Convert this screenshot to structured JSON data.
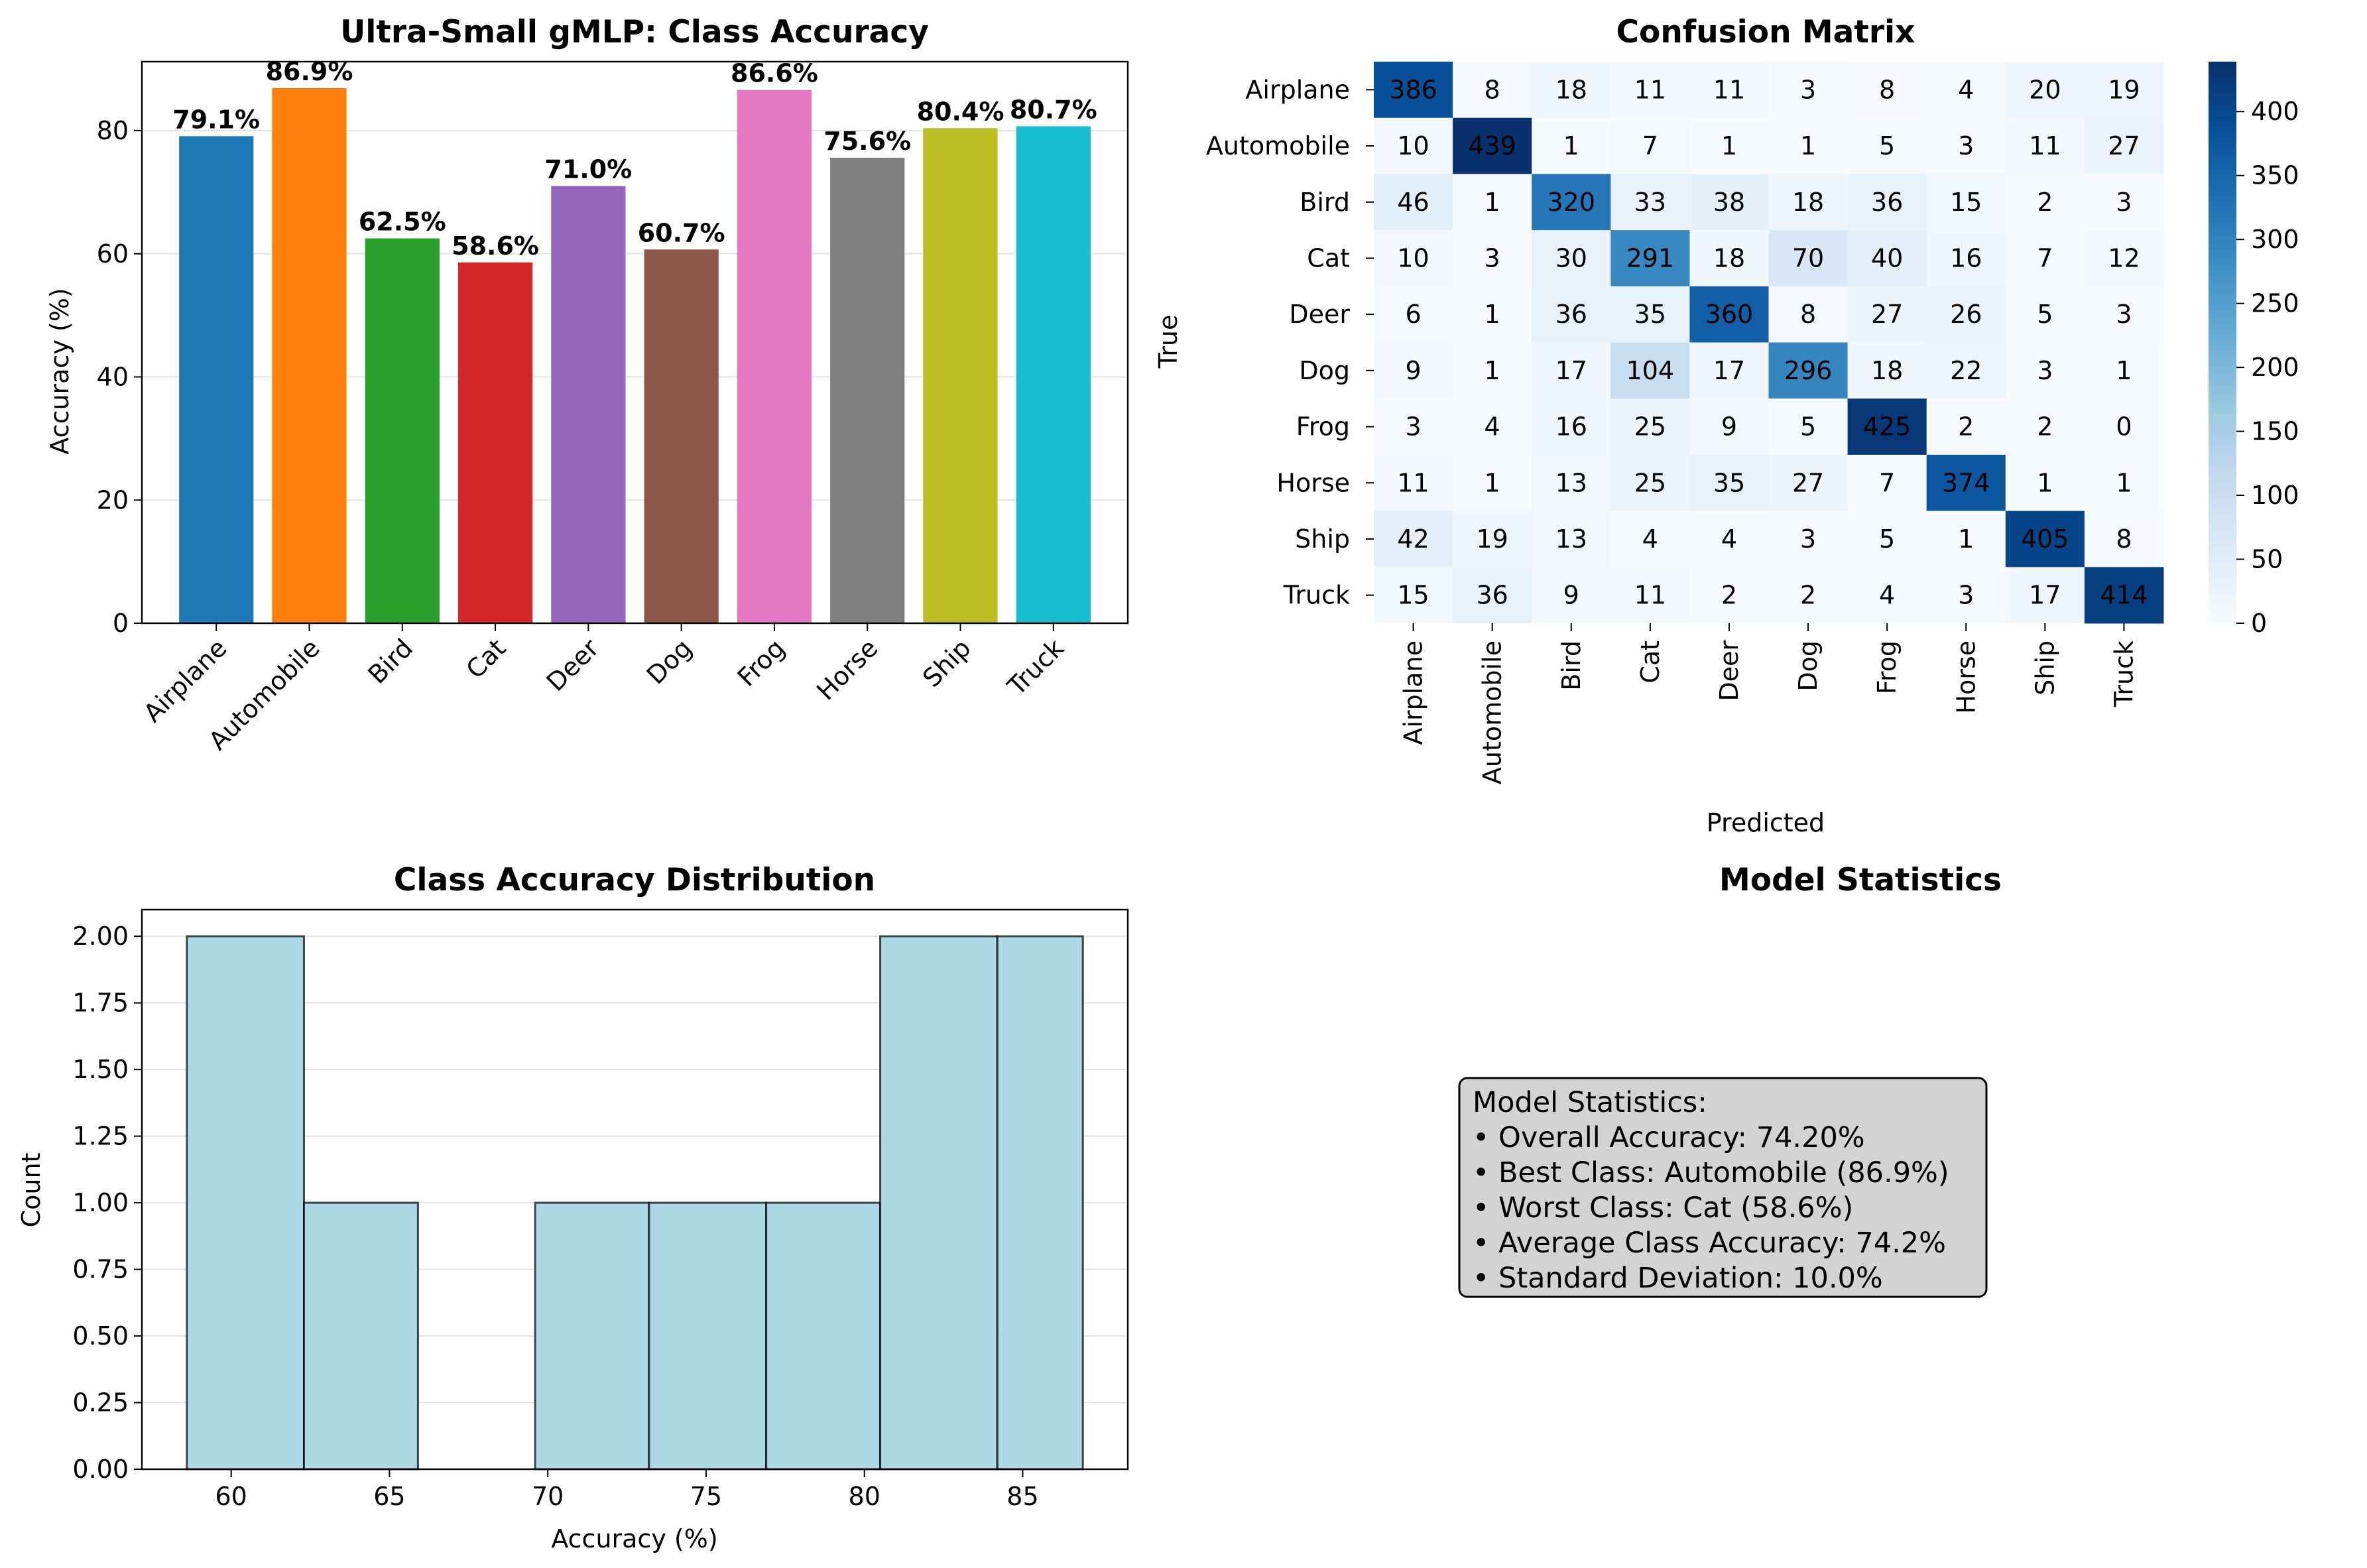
{
  "chart_data": [
    {
      "type": "bar",
      "title": "Ultra-Small gMLP: Class Accuracy",
      "xlabel": "",
      "ylabel": "Accuracy (%)",
      "categories": [
        "Airplane",
        "Automobile",
        "Bird",
        "Cat",
        "Deer",
        "Dog",
        "Frog",
        "Horse",
        "Ship",
        "Truck"
      ],
      "values": [
        79.1,
        86.9,
        62.5,
        58.6,
        71.0,
        60.7,
        86.6,
        75.6,
        80.4,
        80.7
      ],
      "value_labels": [
        "79.1%",
        "86.9%",
        "62.5%",
        "58.6%",
        "71.0%",
        "60.7%",
        "86.6%",
        "75.6%",
        "80.4%",
        "80.7%"
      ],
      "colors": [
        "#1f77b4",
        "#ff7f0e",
        "#2ca02c",
        "#d62728",
        "#9467bd",
        "#8c564b",
        "#e377c2",
        "#7f7f7f",
        "#bcbd22",
        "#17becf"
      ],
      "ylim": [
        0,
        91.2
      ],
      "yticks": [
        "0",
        "20",
        "40",
        "60",
        "80"
      ],
      "grid": "y"
    },
    {
      "type": "heatmap",
      "title": "Confusion Matrix",
      "xlabel": "Predicted",
      "ylabel": "True",
      "row_labels": [
        "Airplane",
        "Automobile",
        "Bird",
        "Cat",
        "Deer",
        "Dog",
        "Frog",
        "Horse",
        "Ship",
        "Truck"
      ],
      "col_labels": [
        "Airplane",
        "Automobile",
        "Bird",
        "Cat",
        "Deer",
        "Dog",
        "Frog",
        "Horse",
        "Ship",
        "Truck"
      ],
      "matrix": [
        [
          386,
          8,
          18,
          11,
          11,
          3,
          8,
          4,
          20,
          19
        ],
        [
          10,
          439,
          1,
          7,
          1,
          1,
          5,
          3,
          11,
          27
        ],
        [
          46,
          1,
          320,
          33,
          38,
          18,
          36,
          15,
          2,
          3
        ],
        [
          10,
          3,
          30,
          291,
          18,
          70,
          40,
          16,
          7,
          12
        ],
        [
          6,
          1,
          36,
          35,
          360,
          8,
          27,
          26,
          5,
          3
        ],
        [
          9,
          1,
          17,
          104,
          17,
          296,
          18,
          22,
          3,
          1
        ],
        [
          3,
          4,
          16,
          25,
          9,
          5,
          425,
          2,
          2,
          0
        ],
        [
          11,
          1,
          13,
          25,
          35,
          27,
          7,
          374,
          1,
          1
        ],
        [
          42,
          19,
          13,
          4,
          4,
          3,
          5,
          1,
          405,
          8
        ],
        [
          15,
          36,
          9,
          11,
          2,
          2,
          4,
          3,
          17,
          414
        ]
      ],
      "colormap": "Blues",
      "vmin": 0,
      "vmax": 439,
      "colorbar_ticks": [
        "0",
        "50",
        "100",
        "150",
        "200",
        "250",
        "300",
        "350",
        "400"
      ]
    },
    {
      "type": "histogram",
      "title": "Class Accuracy Distribution",
      "xlabel": "Accuracy (%)",
      "ylabel": "Count",
      "bin_edges": [
        58.6,
        62.3,
        65.9,
        69.6,
        73.2,
        76.9,
        80.5,
        84.2,
        86.9
      ],
      "counts": [
        2,
        1,
        0,
        1,
        1,
        1,
        2,
        2
      ],
      "color": "#add8e6",
      "edgecolor": "#000000",
      "xlim": [
        57.18,
        88.32
      ],
      "ylim": [
        0,
        2.1
      ],
      "xticks": [
        "60",
        "65",
        "70",
        "75",
        "80",
        "85"
      ],
      "yticks": [
        "0.00",
        "0.25",
        "0.50",
        "0.75",
        "1.00",
        "1.25",
        "1.50",
        "1.75",
        "2.00"
      ],
      "grid": "y"
    }
  ],
  "stats_panel": {
    "title": "Model Statistics",
    "lines": [
      "Model Statistics:",
      "• Overall Accuracy: 74.20%",
      "• Best Class: Automobile (86.9%)",
      "• Worst Class: Cat (58.6%)",
      "• Average Class Accuracy: 74.2%",
      "• Standard Deviation: 10.0%"
    ],
    "box_color": "#d3d3d3"
  }
}
